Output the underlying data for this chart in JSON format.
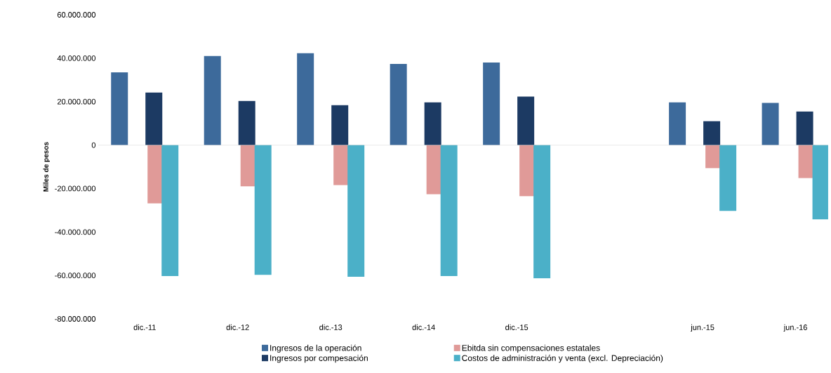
{
  "chart_data": {
    "type": "bar",
    "ylabel": "Miles de pesos",
    "categories": [
      "dic.-11",
      "dic.-12",
      "dic.-13",
      "dic.-14",
      "dic.-15",
      null,
      "jun.-15",
      "jun.-16"
    ],
    "series": [
      {
        "name": "Ingresos de la operación",
        "color": "#3d6a9b",
        "values": [
          33500000,
          41000000,
          42300000,
          37400000,
          38000000,
          null,
          19700000,
          19400000
        ]
      },
      {
        "name": "Ebitda sin compensaciones estatales",
        "color": "#e09a98",
        "values": [
          -26800000,
          -19000000,
          -18400000,
          -22600000,
          -23500000,
          null,
          -10600000,
          -15200000
        ]
      },
      {
        "name": "Ingresos por compesación",
        "color": "#1c3a63",
        "values": [
          24200000,
          20300000,
          18400000,
          19700000,
          22300000,
          null,
          11000000,
          15500000
        ]
      },
      {
        "name": "Costos de administración y venta (excl. Depreciación)",
        "color": "#4bb0c8",
        "values": [
          -60300000,
          -59700000,
          -60600000,
          -60300000,
          -61300000,
          null,
          -30300000,
          -34200000
        ]
      }
    ],
    "ylim": [
      -80000000,
      60000000
    ],
    "yticks": [
      {
        "value": -80000000,
        "label": "-80.000.000"
      },
      {
        "value": -60000000,
        "label": "-60.000.000"
      },
      {
        "value": -40000000,
        "label": "-40.000.000"
      },
      {
        "value": -20000000,
        "label": "-20.000.000"
      },
      0,
      {
        "value": 20000000,
        "label": "20.000.000"
      },
      {
        "value": 40000000,
        "label": "40.000.000"
      },
      {
        "value": 60000000,
        "label": "60.000.000"
      }
    ],
    "ref_lines": [
      {
        "axis": "y",
        "value": 0,
        "color": "#c8c8c8"
      }
    ],
    "legend": "bottom",
    "grid": false
  }
}
